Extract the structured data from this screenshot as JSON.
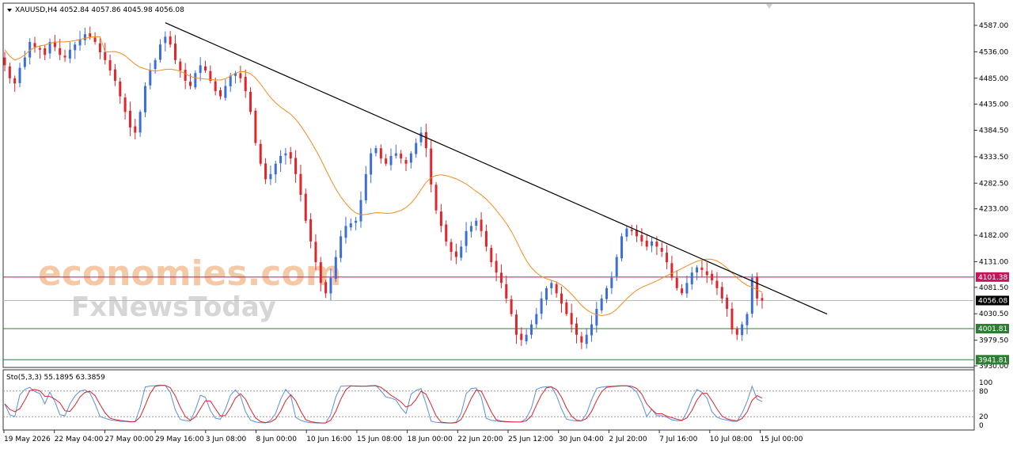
{
  "header": {
    "symbol_line": "XAUUSD,H4  4052.84 4057.86 4045.98 4056.08",
    "stoch_line": "Sto(5,3,3) 55.1895 63.3859"
  },
  "watermark": {
    "line1": "economies.com",
    "line2": "FxNewsToday"
  },
  "chart_data": {
    "type": "candlestick",
    "instrument": "XAUUSD",
    "timeframe": "H4",
    "ohlc_last": {
      "open": 4052.84,
      "high": 4057.86,
      "low": 4045.98,
      "close": 4056.08
    },
    "ylim": [
      3930,
      4620
    ],
    "y_ticks": [
      "4587.00",
      "4536.00",
      "4485.00",
      "4435.00",
      "4384.50",
      "4333.50",
      "4282.50",
      "4233.00",
      "4182.00",
      "4131.00",
      "4081.50",
      "4030.50",
      "3979.50",
      "3930.00"
    ],
    "x_tick_labels": [
      "19 May 2026",
      "22 May 04:00",
      "27 May 00:00",
      "29 May 16:00",
      "3 Jun 08:00",
      "8 Jun 00:00",
      "10 Jun 16:00",
      "15 Jun 08:00",
      "18 Jun 00:00",
      "22 Jun 20:00",
      "25 Jun 12:00",
      "30 Jun 04:00",
      "2 Jul 20:00",
      "7 Jul 16:00",
      "10 Jul 08:00",
      "15 Jul 00:00"
    ],
    "closes": [
      4510,
      4485,
      4475,
      4505,
      4525,
      4555,
      4545,
      4540,
      4530,
      4555,
      4545,
      4530,
      4525,
      4540,
      4550,
      4560,
      4570,
      4565,
      4555,
      4535,
      4520,
      4500,
      4480,
      4450,
      4420,
      4390,
      4380,
      4420,
      4470,
      4500,
      4520,
      4550,
      4565,
      4550,
      4520,
      4500,
      4480,
      4470,
      4495,
      4510,
      4500,
      4480,
      4460,
      4450,
      4470,
      4490,
      4495,
      4485,
      4460,
      4420,
      4360,
      4320,
      4290,
      4300,
      4320,
      4335,
      4340,
      4330,
      4300,
      4260,
      4210,
      4170,
      4130,
      4090,
      4070,
      4100,
      4140,
      4180,
      4200,
      4205,
      4210,
      4250,
      4300,
      4340,
      4350,
      4330,
      4320,
      4335,
      4340,
      4330,
      4320,
      4340,
      4360,
      4380,
      4350,
      4280,
      4230,
      4200,
      4170,
      4150,
      4140,
      4160,
      4190,
      4200,
      4210,
      4190,
      4160,
      4130,
      4110,
      4090,
      4060,
      4030,
      3990,
      3980,
      3990,
      4010,
      4030,
      4060,
      4080,
      4090,
      4070,
      4050,
      4030,
      4010,
      3990,
      3975,
      3990,
      4010,
      4040,
      4060,
      4080,
      4100,
      4140,
      4180,
      4195,
      4190,
      4180,
      4170,
      4160,
      4170,
      4160,
      4150,
      4130,
      4100,
      4080,
      4070,
      4090,
      4110,
      4120,
      4115,
      4105,
      4095,
      4080,
      4060,
      4040,
      4000,
      3990,
      4010,
      4030,
      4100,
      4060,
      4056.08
    ],
    "ma_period_line": "orange moving average",
    "trendline": {
      "from": {
        "date": "29 May 16:00",
        "price": 4592
      },
      "to": {
        "date": "15 Jul 16:00",
        "price": 4030
      }
    },
    "horizontal_levels": [
      {
        "price": 4101.38,
        "label": "4101.38",
        "color": "#c2185b"
      },
      {
        "price": 4056.08,
        "label": "4056.08",
        "color": "#000000"
      },
      {
        "price": 4001.81,
        "label": "4001.81",
        "color": "#2e7d32"
      },
      {
        "price": 3941.81,
        "label": "3941.81",
        "color": "#2e7d32"
      }
    ],
    "stochastic": {
      "params": "5,3,3",
      "k_last": 55.1895,
      "d_last": 63.3859,
      "levels": [
        80,
        20
      ],
      "y_tick_labels": [
        "100",
        "80",
        "20",
        "0"
      ]
    }
  },
  "colors": {
    "bull": "#3b6fd6",
    "bear": "#e0252b",
    "ma": "#f28c1e",
    "trendline": "#000000",
    "k_line": "#5b8fd9",
    "d_line": "#d9232d",
    "border": "#333333"
  }
}
